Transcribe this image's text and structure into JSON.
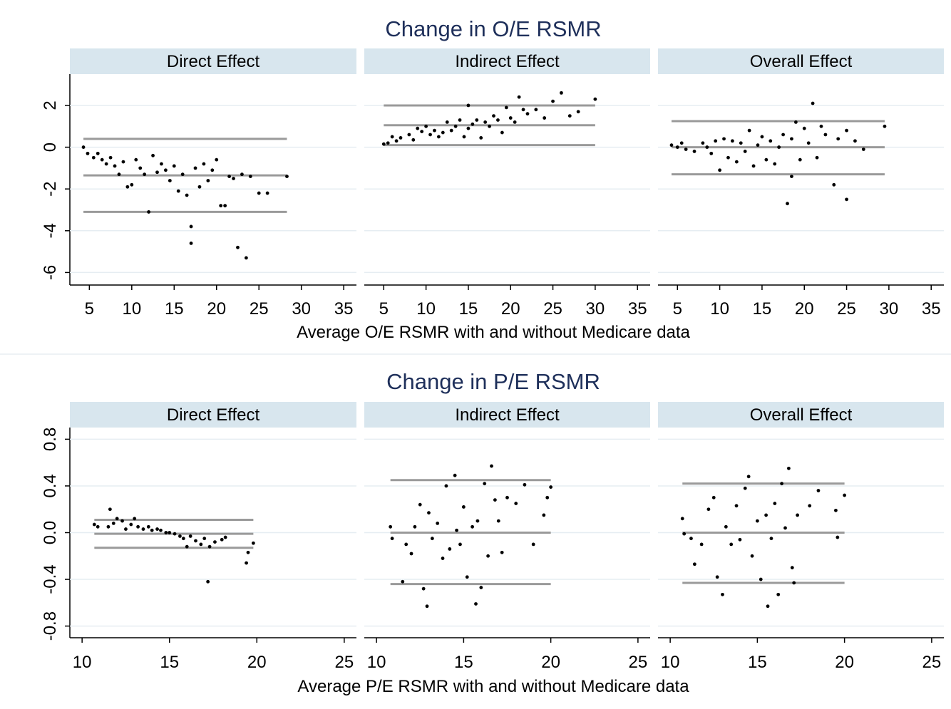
{
  "chart_data": [
    {
      "type": "scatter",
      "title": "Change in O/E RSMR",
      "xlabel": "Average O/E RSMR with and without Medicare data",
      "xlim": [
        2.7,
        36.5
      ],
      "xticks": [
        5,
        10,
        15,
        20,
        25,
        30,
        35
      ],
      "ylim": [
        -6.6,
        3.5
      ],
      "yticks": [
        -6,
        -4,
        -2,
        0,
        2
      ],
      "grid": true,
      "point_color": "#000000",
      "line_color": "#9a9a9a",
      "panels": [
        {
          "title": "Direct Effect",
          "x": [
            4.3,
            4.8,
            5.5,
            6,
            6.5,
            7,
            7.5,
            8,
            8.5,
            9,
            9.5,
            10,
            10.5,
            11,
            11.5,
            12,
            12.5,
            13,
            13.5,
            14,
            14.5,
            15,
            15.5,
            16,
            16.5,
            17,
            17,
            17.5,
            18,
            18.5,
            19,
            19.5,
            20,
            20.5,
            21,
            21.5,
            22,
            22.5,
            23,
            23.5,
            24,
            25,
            26,
            28.3
          ],
          "y": [
            0,
            -0.3,
            -0.5,
            -0.3,
            -0.6,
            -0.8,
            -0.5,
            -0.9,
            -1.3,
            -0.7,
            -1.9,
            -1.8,
            -0.6,
            -1.0,
            -1.3,
            -3.1,
            -0.4,
            -1.2,
            -0.8,
            -1.1,
            -1.6,
            -0.9,
            -2.1,
            -1.3,
            -2.3,
            -3.8,
            -4.6,
            -1.0,
            -1.9,
            -0.8,
            -1.6,
            -1.1,
            -0.6,
            -2.8,
            -2.8,
            -1.4,
            -1.5,
            -4.8,
            -1.3,
            -5.3,
            -1.4,
            -2.2,
            -2.2,
            -1.4
          ],
          "hlines": [
            {
              "y": 0.4,
              "x": [
                4.3,
                28.3
              ]
            },
            {
              "y": -1.35,
              "x": [
                4.3,
                28.3
              ]
            },
            {
              "y": -3.1,
              "x": [
                4.3,
                28.3
              ]
            }
          ]
        },
        {
          "title": "Indirect Effect",
          "x": [
            5,
            5.5,
            6,
            6.5,
            7,
            8,
            8.5,
            9,
            9.5,
            10,
            10.5,
            11,
            11.5,
            12,
            12.5,
            13,
            13.5,
            14,
            14.5,
            15,
            15,
            15.5,
            16,
            16.5,
            17,
            17.5,
            18,
            18.5,
            19,
            19.5,
            20,
            20.5,
            21,
            21.5,
            22,
            23,
            24,
            25,
            26,
            27,
            28,
            30
          ],
          "y": [
            0.15,
            0.2,
            0.5,
            0.3,
            0.45,
            0.6,
            0.35,
            0.9,
            0.75,
            1.0,
            0.6,
            0.8,
            0.5,
            0.7,
            1.2,
            0.8,
            1.0,
            1.3,
            0.5,
            2.0,
            0.9,
            1.1,
            1.3,
            0.45,
            1.2,
            1.0,
            1.5,
            1.3,
            0.7,
            1.9,
            1.4,
            1.2,
            2.4,
            1.8,
            1.6,
            1.8,
            1.4,
            2.2,
            2.6,
            1.5,
            1.7,
            2.3
          ],
          "hlines": [
            {
              "y": 2.0,
              "x": [
                5,
                30
              ]
            },
            {
              "y": 1.05,
              "x": [
                5,
                30
              ]
            },
            {
              "y": 0.1,
              "x": [
                5,
                30
              ]
            }
          ]
        },
        {
          "title": "Overall Effect",
          "x": [
            4.3,
            5,
            5.5,
            6,
            7,
            8,
            8.5,
            9,
            9.5,
            10,
            10.5,
            11,
            11.5,
            12,
            12.5,
            13,
            13.5,
            14,
            14.5,
            15,
            15.5,
            16,
            16.5,
            17,
            17.5,
            18,
            18.5,
            18.5,
            19,
            19.5,
            20,
            20.5,
            21,
            21.5,
            22,
            22.5,
            23.5,
            24,
            25,
            25,
            26,
            27,
            29.5
          ],
          "y": [
            0.1,
            0,
            0.2,
            -0.1,
            -0.2,
            0.2,
            0,
            -0.3,
            0.3,
            -1.1,
            0.4,
            -0.5,
            0.3,
            -0.7,
            0.2,
            -0.2,
            0.8,
            -0.9,
            0.1,
            0.5,
            -0.6,
            0.3,
            -0.8,
            0,
            0.6,
            -2.7,
            -1.4,
            0.4,
            1.2,
            -0.6,
            0.9,
            0.2,
            2.1,
            -0.5,
            1.0,
            0.6,
            -1.8,
            0.4,
            -2.5,
            0.8,
            0.3,
            -0.1,
            1.0
          ],
          "hlines": [
            {
              "y": 1.25,
              "x": [
                4.3,
                29.5
              ]
            },
            {
              "y": 0,
              "x": [
                4.3,
                29.5
              ]
            },
            {
              "y": -1.3,
              "x": [
                4.3,
                29.5
              ]
            }
          ]
        }
      ]
    },
    {
      "type": "scatter",
      "title": "Change in P/E RSMR",
      "xlabel": "Average P/E RSMR with and without Medicare data",
      "xlim": [
        9.3,
        25.7
      ],
      "xticks": [
        10,
        15,
        20,
        25
      ],
      "ylim": [
        -0.9,
        0.9
      ],
      "yticks": [
        -0.8,
        -0.4,
        {
          "value": 0,
          "label": "0.0"
        },
        0.4,
        0.8
      ],
      "grid": true,
      "point_color": "#000000",
      "line_color": "#9a9a9a",
      "panels": [
        {
          "title": "Direct Effect",
          "x": [
            10.7,
            10.9,
            11.5,
            11.6,
            11.8,
            12,
            12.3,
            12.5,
            12.8,
            13,
            13.2,
            13.5,
            13.8,
            14,
            14.3,
            14.5,
            14.8,
            15,
            15.3,
            15.6,
            15.8,
            16,
            16.2,
            16.5,
            16.8,
            17,
            17.2,
            17.3,
            17.6,
            18,
            18.2,
            19.4,
            19.5,
            19.8
          ],
          "y": [
            0.07,
            0.05,
            0.05,
            0.2,
            0.08,
            0.12,
            0.1,
            0.03,
            0.07,
            0.12,
            0.05,
            0.03,
            0.05,
            0.02,
            0.03,
            0.02,
            0,
            0,
            -0.01,
            -0.03,
            -0.05,
            -0.12,
            -0.03,
            -0.07,
            -0.1,
            -0.05,
            -0.42,
            -0.12,
            -0.08,
            -0.06,
            -0.04,
            -0.26,
            -0.17,
            -0.09
          ],
          "hlines": [
            {
              "y": 0.11,
              "x": [
                10.7,
                19.8
              ]
            },
            {
              "y": -0.01,
              "x": [
                10.7,
                19.8
              ]
            },
            {
              "y": -0.13,
              "x": [
                10.7,
                19.8
              ]
            }
          ]
        },
        {
          "title": "Indirect Effect",
          "x": [
            10.8,
            10.9,
            11.5,
            11.7,
            12,
            12.2,
            12.5,
            12.7,
            12.9,
            13,
            13.2,
            13.5,
            13.8,
            14,
            14.2,
            14.5,
            14.6,
            14.8,
            15,
            15.2,
            15.5,
            15.7,
            15.8,
            16,
            16.2,
            16.4,
            16.6,
            16.8,
            17,
            17.2,
            17.5,
            18,
            18.5,
            19,
            19.6,
            19.8,
            20
          ],
          "y": [
            0.05,
            -0.05,
            -0.42,
            -0.1,
            -0.18,
            0.05,
            0.24,
            -0.48,
            -0.63,
            0.17,
            -0.05,
            0.08,
            -0.22,
            0.4,
            -0.14,
            0.49,
            0.02,
            -0.1,
            0.22,
            -0.38,
            0.05,
            -0.61,
            0.1,
            -0.47,
            0.42,
            -0.2,
            0.57,
            0.28,
            0.1,
            -0.17,
            0.3,
            0.25,
            0.41,
            -0.1,
            0.15,
            0.3,
            0.39
          ],
          "hlines": [
            {
              "y": 0.45,
              "x": [
                10.8,
                20
              ]
            },
            {
              "y": 0,
              "x": [
                10.8,
                20
              ]
            },
            {
              "y": -0.44,
              "x": [
                10.8,
                20
              ]
            }
          ]
        },
        {
          "title": "Overall Effect",
          "x": [
            10.7,
            10.8,
            11.2,
            11.4,
            11.8,
            12.2,
            12.5,
            12.7,
            13,
            13.2,
            13.5,
            13.8,
            14,
            14.3,
            14.5,
            14.7,
            15,
            15.2,
            15.5,
            15.6,
            15.8,
            16,
            16.2,
            16.4,
            16.6,
            16.8,
            17,
            17.1,
            17.3,
            18,
            18.5,
            19.5,
            19.6,
            20
          ],
          "y": [
            0.12,
            -0.01,
            -0.05,
            -0.27,
            -0.1,
            0.2,
            0.3,
            -0.38,
            -0.53,
            0.05,
            -0.1,
            0.23,
            -0.06,
            0.38,
            0.48,
            -0.2,
            0.1,
            -0.4,
            0.15,
            -0.63,
            -0.05,
            0.25,
            -0.53,
            0.42,
            0.04,
            0.55,
            -0.3,
            -0.43,
            0.15,
            0.23,
            0.36,
            0.19,
            -0.04,
            0.32
          ],
          "hlines": [
            {
              "y": 0.42,
              "x": [
                10.7,
                20
              ]
            },
            {
              "y": 0,
              "x": [
                10.7,
                20
              ]
            },
            {
              "y": -0.43,
              "x": [
                10.7,
                20
              ]
            }
          ]
        }
      ]
    }
  ]
}
